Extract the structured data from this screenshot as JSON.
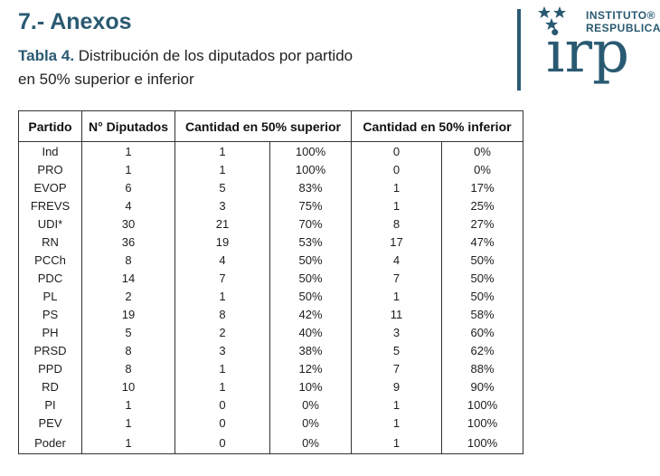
{
  "section_title": "7.- Anexos",
  "caption": {
    "label": "Tabla 4.",
    "line1_rest": " Distribución de los diputados por partido",
    "line2": "en 50% superior e inferior"
  },
  "logo": {
    "line1": "INSTITUTO®",
    "line2": "RESPUBLICA",
    "mark": "irp",
    "color": "#2a5a72"
  },
  "table": {
    "headers": [
      "Partido",
      "N° Diputados",
      "Cantidad en 50% superior",
      "Cantidad en 50% inferior"
    ],
    "rows": [
      [
        "Ind",
        "1",
        "1",
        "100%",
        "0",
        "0%"
      ],
      [
        "PRO",
        "1",
        "1",
        "100%",
        "0",
        "0%"
      ],
      [
        "EVOP",
        "6",
        "5",
        "83%",
        "1",
        "17%"
      ],
      [
        "FREVS",
        "4",
        "3",
        "75%",
        "1",
        "25%"
      ],
      [
        "UDI*",
        "30",
        "21",
        "70%",
        "8",
        "27%"
      ],
      [
        "RN",
        "36",
        "19",
        "53%",
        "17",
        "47%"
      ],
      [
        "PCCh",
        "8",
        "4",
        "50%",
        "4",
        "50%"
      ],
      [
        "PDC",
        "14",
        "7",
        "50%",
        "7",
        "50%"
      ],
      [
        "PL",
        "2",
        "1",
        "50%",
        "1",
        "50%"
      ],
      [
        "PS",
        "19",
        "8",
        "42%",
        "11",
        "58%"
      ],
      [
        "PH",
        "5",
        "2",
        "40%",
        "3",
        "60%"
      ],
      [
        "PRSD",
        "8",
        "3",
        "38%",
        "5",
        "62%"
      ],
      [
        "PPD",
        "8",
        "1",
        "12%",
        "7",
        "88%"
      ],
      [
        "RD",
        "10",
        "1",
        "10%",
        "9",
        "90%"
      ],
      [
        "PI",
        "1",
        "0",
        "0%",
        "1",
        "100%"
      ],
      [
        "PEV",
        "1",
        "0",
        "0%",
        "1",
        "100%"
      ],
      [
        "Poder",
        "1",
        "0",
        "0%",
        "1",
        "100%"
      ]
    ]
  }
}
